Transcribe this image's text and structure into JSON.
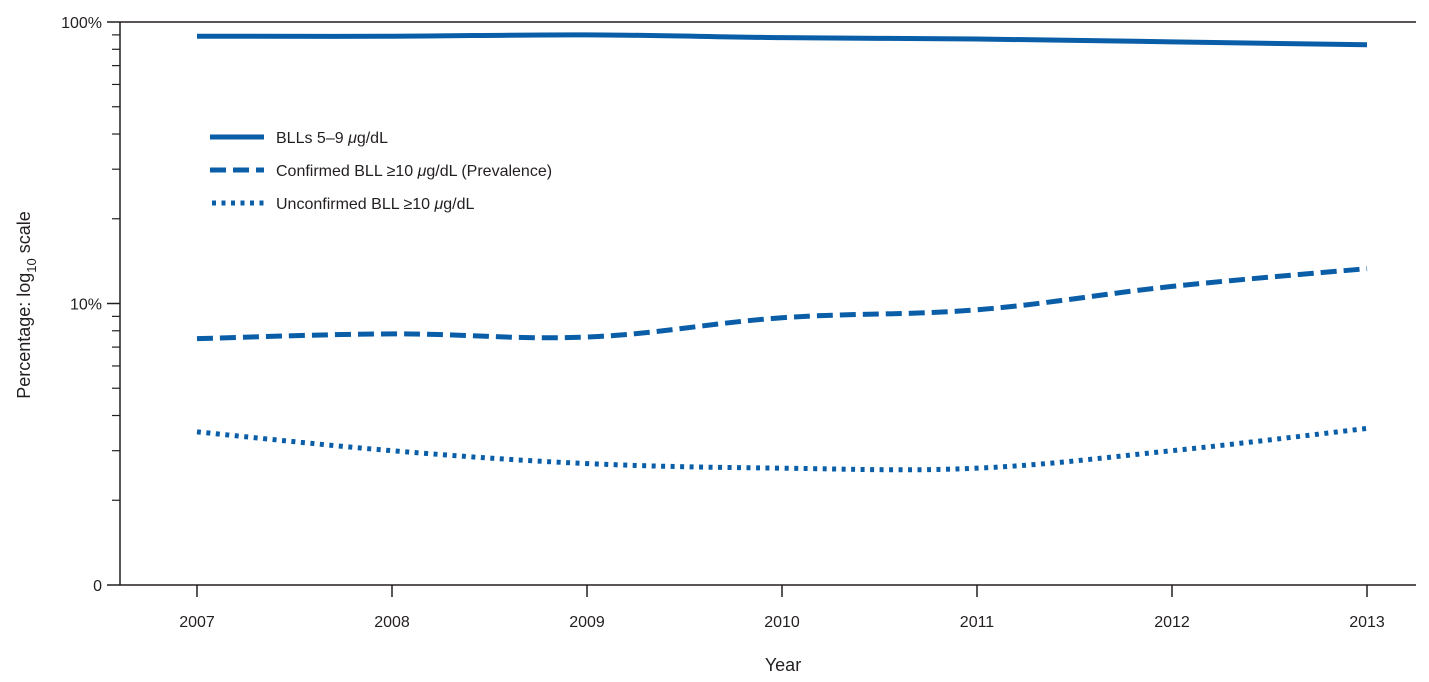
{
  "chart_data": {
    "type": "line",
    "xlabel": "Year",
    "ylabel": "Percentage: log10 scale",
    "ylabel_parts": {
      "pre": "Percentage: log",
      "sub": "10",
      "post": " scale"
    },
    "y_scale": "log",
    "ylim": [
      1,
      100
    ],
    "y_ticks": [
      {
        "value": 1,
        "label": "0"
      },
      {
        "value": 10,
        "label": "10%"
      },
      {
        "value": 100,
        "label": "100%"
      }
    ],
    "categories": [
      "2007",
      "2008",
      "2009",
      "2010",
      "2011",
      "2012",
      "2013"
    ],
    "grid": false,
    "legend_position": "top-left",
    "series": [
      {
        "name": "BLLs 5–9 μg/dL",
        "label_parts": {
          "pre": "BLLs 5–9 ",
          "italic": "μ",
          "post": "g/dL"
        },
        "style": "solid",
        "color": "#0a5ea8",
        "values": [
          89,
          89,
          90,
          88,
          87,
          85,
          83
        ]
      },
      {
        "name": "Confirmed BLL ≥10 μg/dL (Prevalence)",
        "label_parts": {
          "pre": "Confirmed BLL ≥10 ",
          "italic": "μ",
          "post": "g/dL (Prevalence)"
        },
        "style": "dashed",
        "color": "#0a5ea8",
        "values": [
          7.5,
          7.8,
          7.6,
          8.9,
          9.5,
          11.5,
          13.3
        ]
      },
      {
        "name": "Unconfirmed BLL ≥10 μg/dL",
        "label_parts": {
          "pre": "Unconfirmed BLL ≥10 ",
          "italic": "μ",
          "post": "g/dL"
        },
        "style": "dotted",
        "color": "#0a5ea8",
        "values": [
          3.5,
          3.0,
          2.7,
          2.6,
          2.6,
          3.0,
          3.6
        ]
      }
    ]
  }
}
